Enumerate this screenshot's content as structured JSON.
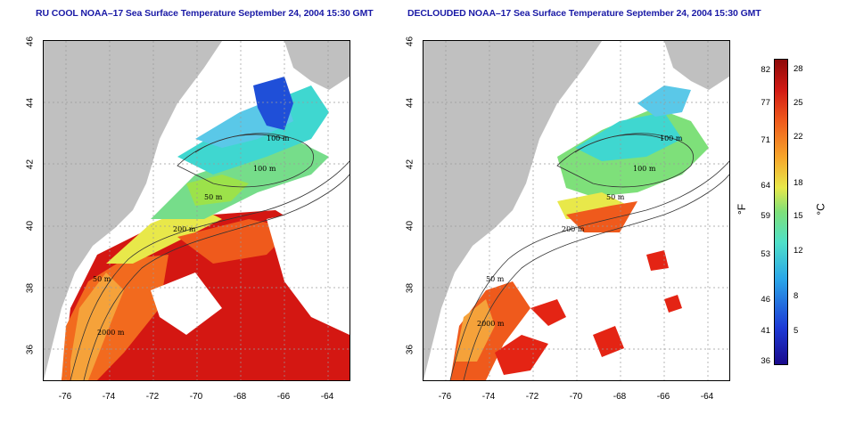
{
  "left_panel": {
    "title": "RU COOL NOAA–17 Sea Surface Temperature September 24, 2004 15:30 GMT",
    "contour_labels": [
      "100 m",
      "100 m",
      "50 m",
      "200 m",
      "50 m",
      "2000 m"
    ]
  },
  "right_panel": {
    "title": "DECLOUDED NOAA–17 Sea Surface Temperature September 24, 2004 15:30 GMT",
    "contour_labels": [
      "100 m",
      "100 m",
      "50 m",
      "200 m",
      "50 m",
      "2000 m"
    ]
  },
  "axes": {
    "y_ticks": [
      "46",
      "44",
      "42",
      "40",
      "38",
      "36"
    ],
    "x_ticks": [
      "-76",
      "-74",
      "-72",
      "-70",
      "-68",
      "-66",
      "-64"
    ]
  },
  "colorbar": {
    "fahrenheit_unit": "°F",
    "celsius_unit": "°C",
    "fahrenheit_ticks": [
      "82",
      "77",
      "71",
      "64",
      "59",
      "53",
      "46",
      "41",
      "36"
    ],
    "celsius_ticks": [
      "28",
      "25",
      "22",
      "18",
      "15",
      "12",
      "8",
      "5"
    ],
    "colors": [
      "#1a0a8c",
      "#1d3ad6",
      "#2aa6e8",
      "#4fe0c8",
      "#7ee07a",
      "#e8e84a",
      "#f7a52a",
      "#ef5a1c",
      "#d21a14",
      "#8e0a0a"
    ]
  }
}
